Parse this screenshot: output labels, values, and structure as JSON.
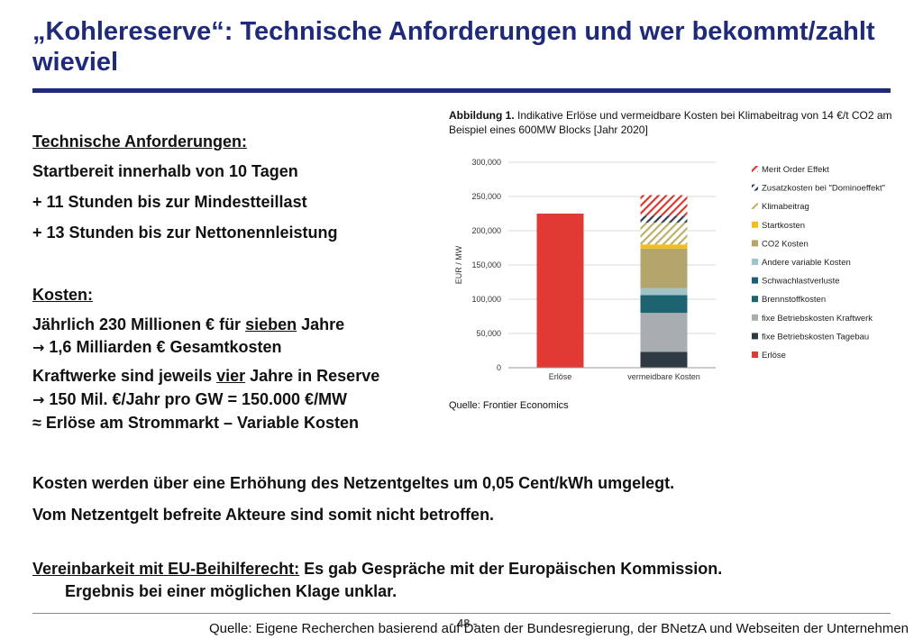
{
  "title": "„Kohlereserve“: Technische Anforderungen und wer bekommt/zahlt wieviel",
  "left": {
    "tech_heading": "Technische Anforderungen:",
    "tech_1": "Startbereit innerhalb von 10 Tagen",
    "tech_2": "+ 11 Stunden bis zur Mindestteillast",
    "tech_3": "+ 13 Stunden bis zur Nettonennleistung",
    "cost_heading": "Kosten:",
    "cost_1a": "Jährlich 230 Millionen € für ",
    "cost_1b": "sieben",
    "cost_1c": " Jahre",
    "arrow_glyph": "→",
    "cost_2": "1,6 Milliarden € Gesamtkosten",
    "cost_3a": "Kraftwerke sind jeweils ",
    "cost_3b": "vier",
    "cost_3c": " Jahre in Reserve",
    "cost_4": "150 Mil. €/Jahr pro GW = 150.000 €/MW",
    "cost_5": "≈ Erlöse am Strommarkt – Variable Kosten"
  },
  "figure": {
    "caption_bold": "Abbildung 1.",
    "caption_rest": " Indikative Erlöse und vermeidbare Kosten bei Klimabeitrag von 14 €/t CO2 am Beispiel eines 600MW Blocks [Jahr 2020]",
    "source": "Quelle: Frontier Economics"
  },
  "chart_data": {
    "type": "bar",
    "stacked": true,
    "ylabel": "EUR / MW",
    "ylim": [
      0,
      300000
    ],
    "yticks": [
      0,
      50000,
      100000,
      150000,
      200000,
      250000,
      300000
    ],
    "ytick_labels": [
      "0",
      "50,000",
      "100,000",
      "150,000",
      "200,000",
      "250,000",
      "300,000"
    ],
    "grid": true,
    "legend_position": "right",
    "categories": [
      "Erlöse",
      "vermeidbare Kosten"
    ],
    "series": [
      {
        "name": "Merit Order Effekt",
        "values": [
          0,
          30000
        ],
        "color": "#d93a30",
        "pattern": "hatch"
      },
      {
        "name": "Zusatzkosten bei \"Dominoeffekt\"",
        "values": [
          0,
          10000
        ],
        "color": "#2f3f55",
        "pattern": "hatch"
      },
      {
        "name": "Klimabeitrag",
        "values": [
          0,
          32000
        ],
        "color": "#bfae6a",
        "pattern": "hatch"
      },
      {
        "name": "Startkosten",
        "values": [
          0,
          6000
        ],
        "color": "#f2bf1a",
        "pattern": "solid"
      },
      {
        "name": "CO2 Kosten",
        "values": [
          0,
          58000
        ],
        "color": "#b3a56c",
        "pattern": "solid"
      },
      {
        "name": "Andere variable Kosten",
        "values": [
          0,
          10000
        ],
        "color": "#9fc3c9",
        "pattern": "solid"
      },
      {
        "name": "Schwachlastverluste",
        "values": [
          0,
          0
        ],
        "color": "#1e5e75",
        "pattern": "solid"
      },
      {
        "name": "Brennstoffkosten",
        "values": [
          0,
          26000
        ],
        "color": "#1e6470",
        "pattern": "solid"
      },
      {
        "name": "fixe Betriebskosten Kraftwerk",
        "values": [
          0,
          57000
        ],
        "color": "#a7adb1",
        "pattern": "solid"
      },
      {
        "name": "fixe Betriebskosten Tagebau",
        "values": [
          0,
          23000
        ],
        "color": "#2f3b44",
        "pattern": "solid"
      },
      {
        "name": "Erlöse",
        "values": [
          225000,
          0
        ],
        "color": "#e13a35",
        "pattern": "solid"
      }
    ]
  },
  "bottom": {
    "line1": "Kosten werden über eine Erhöhung des Netzentgeltes um 0,05 Cent/kWh umgelegt.",
    "line2": "Vom Netzentgelt befreite Akteure sind somit nicht betroffen.",
    "line3_u": "Vereinbarkeit mit EU-Beihilferecht:",
    "line3_rest": " Es gab Gespräche mit der Europäischen Kommission.",
    "line4": "Ergebnis bei einer möglichen Klage unklar."
  },
  "footer": {
    "source": "Quelle: Eigene Recherchen basierend auf Daten der Bundesregierung, der BNetzA und Webseiten der Unternehmen",
    "page": "- 48 -"
  }
}
